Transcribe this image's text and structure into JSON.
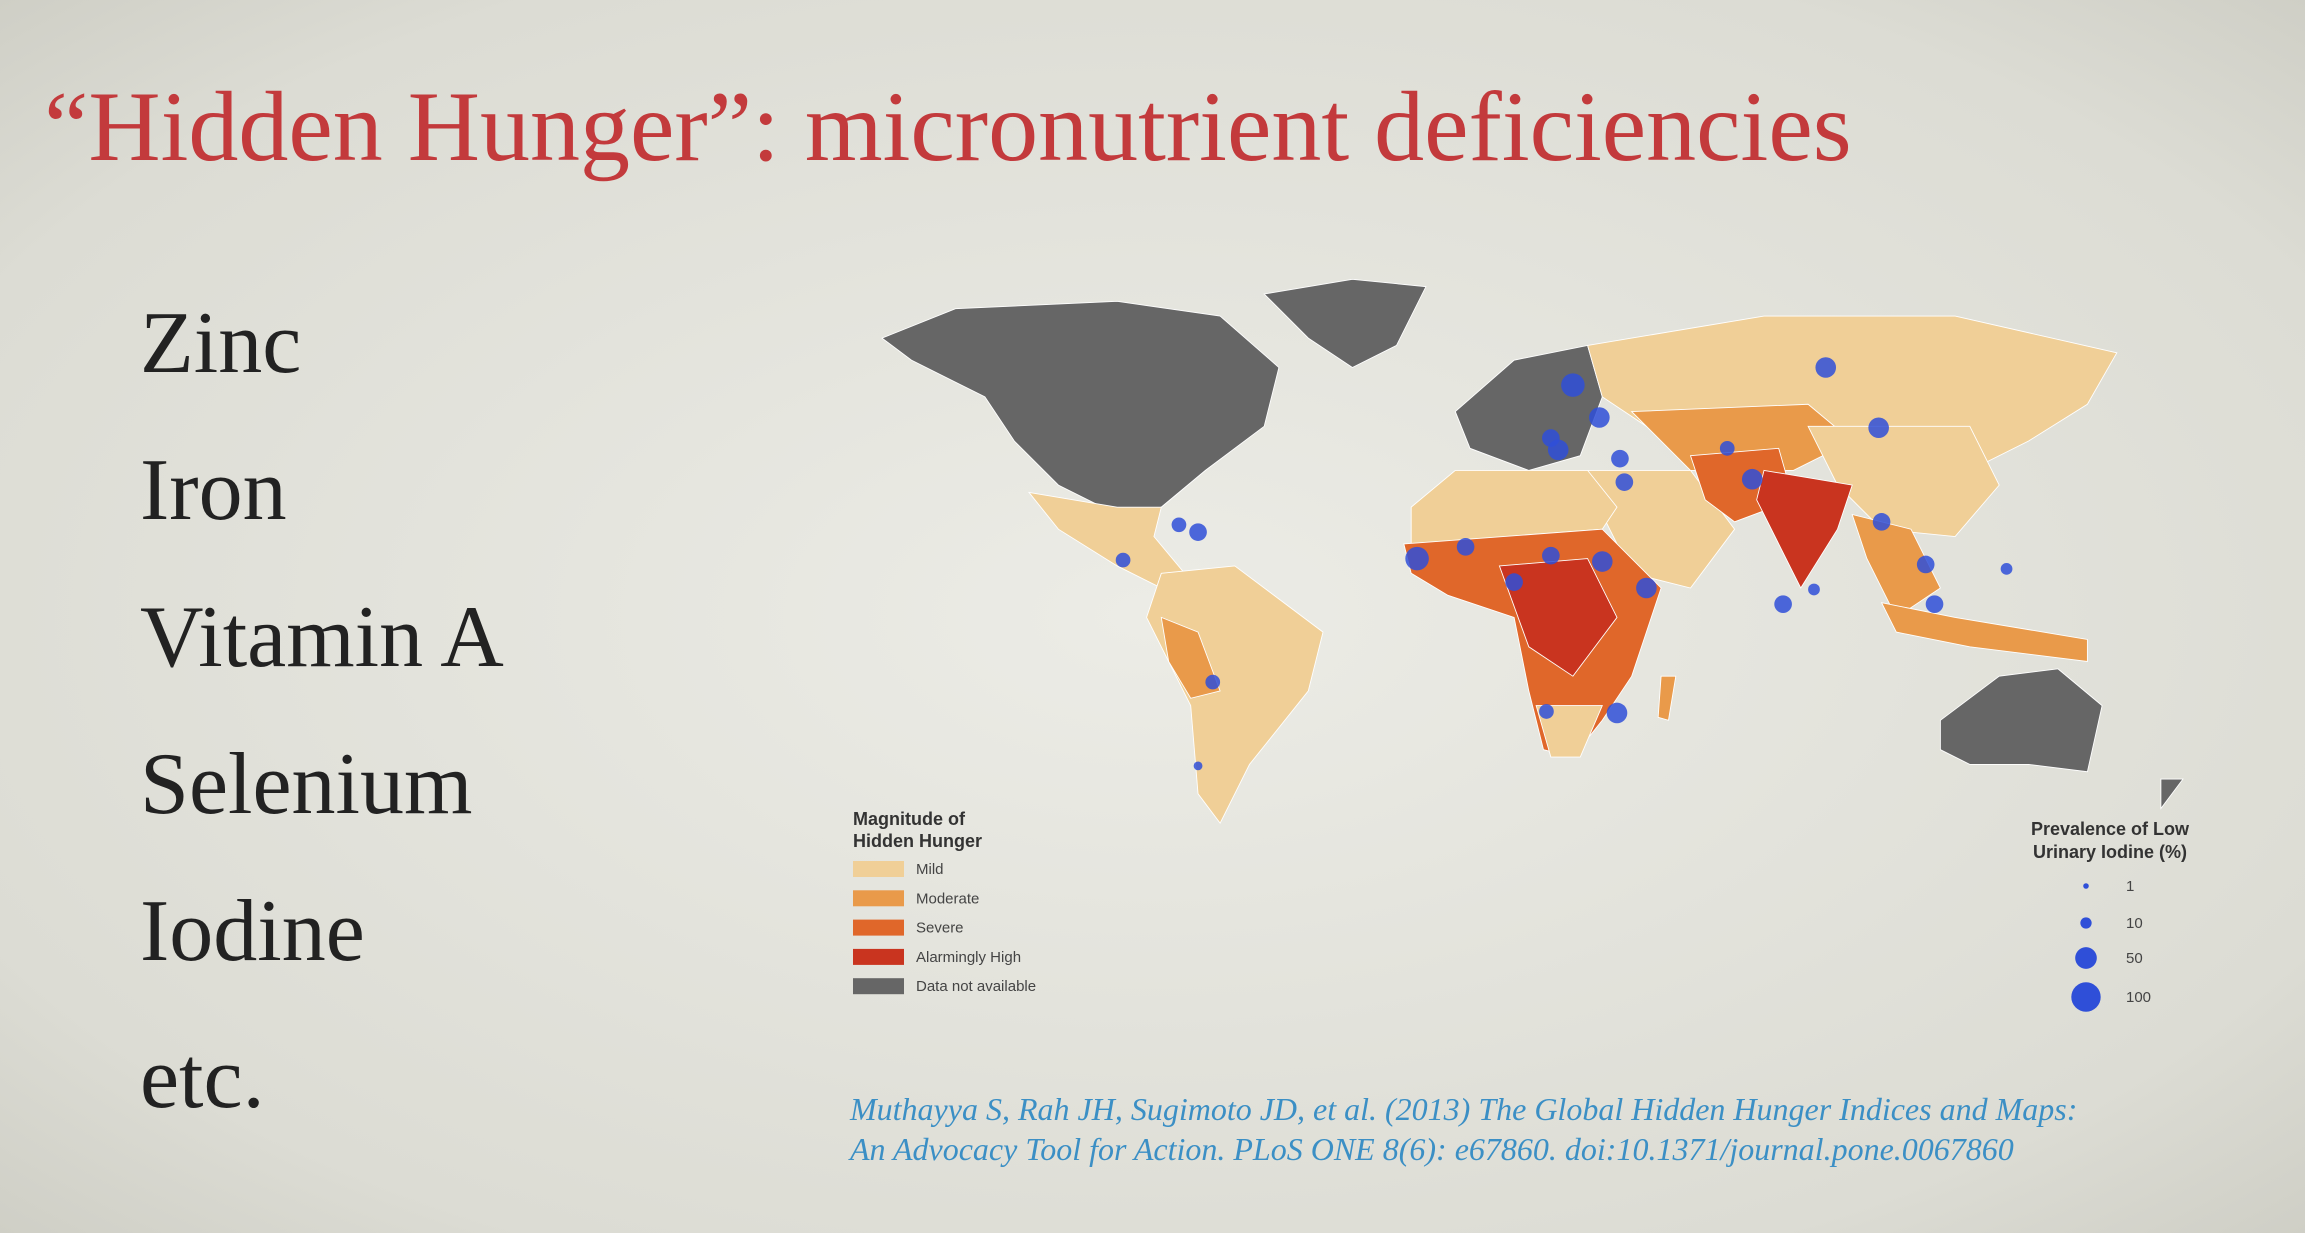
{
  "title": "“Hidden Hunger”: micronutrient deficiencies",
  "list": [
    "Zinc",
    "Iron",
    "Vitamin A",
    "Selenium",
    "Iodine",
    "etc."
  ],
  "map_legend": {
    "title_lines": [
      "Magnitude of",
      "Hidden Hunger"
    ],
    "items": [
      {
        "label": "Mild",
        "color": "#f0cf97"
      },
      {
        "label": "Moderate",
        "color": "#e99a4a"
      },
      {
        "label": "Severe",
        "color": "#e0672a"
      },
      {
        "label": "Alarmingly High",
        "color": "#c9341f"
      },
      {
        "label": "Data not available",
        "color": "#666666"
      }
    ]
  },
  "bubble_legend": {
    "title_lines": [
      "Prevalence of Low",
      "Urinary Iodine (%)"
    ],
    "items": [
      1,
      10,
      50,
      100
    ]
  },
  "citation": [
    "Muthayya S, Rah JH, Sugimoto JD, et al. (2013) The Global Hidden Hunger Indices and Maps:",
    "An Advocacy Tool for Action. PLoS ONE 8(6): e67860. doi:10.1371/journal.pone.0067860"
  ]
}
